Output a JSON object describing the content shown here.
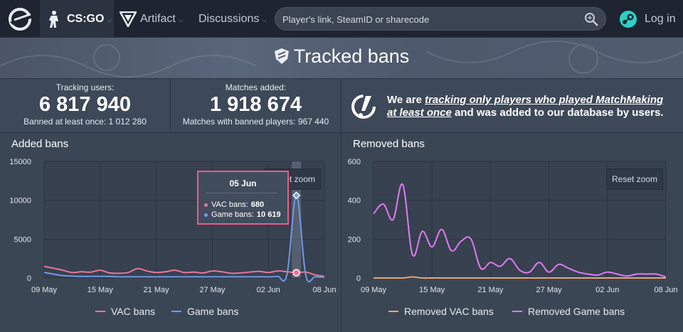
{
  "nav": {
    "game_label": "CS:GO",
    "artifact_label": "Artifact",
    "discussions_label": "Discussions",
    "search_placeholder": "Player's link, SteamID or sharecode",
    "login_label": "Log in"
  },
  "hero": {
    "title": "Tracked bans"
  },
  "stats": {
    "tracking": {
      "title": "Tracking users:",
      "value": "6 817 940",
      "sub": "Banned at least once: 1 012 280"
    },
    "matches": {
      "title": "Matches added:",
      "value": "1 918 674",
      "sub": "Matches with banned players: 967 440"
    }
  },
  "notice": {
    "prefix": "We are ",
    "emphasis": "tracking only players who played MatchMaking at least once",
    "suffix": " and was added to our database by users."
  },
  "colors": {
    "vac": "#e8769b",
    "game": "#6f9ae8",
    "removed_vac": "#e8a66f",
    "removed_game": "#e07af0"
  },
  "chart_data": [
    {
      "type": "line",
      "title": "Added bans",
      "x": [
        "09 May",
        "10 May",
        "11 May",
        "12 May",
        "13 May",
        "14 May",
        "15 May",
        "16 May",
        "17 May",
        "18 May",
        "19 May",
        "20 May",
        "21 May",
        "22 May",
        "23 May",
        "24 May",
        "25 May",
        "26 May",
        "27 May",
        "28 May",
        "29 May",
        "30 May",
        "31 May",
        "01 Jun",
        "02 Jun",
        "03 Jun",
        "04 Jun",
        "05 Jun",
        "06 Jun",
        "07 Jun",
        "08 Jun"
      ],
      "x_ticks": [
        "09 May",
        "15 May",
        "21 May",
        "27 May",
        "02 Jun",
        "08 Jun"
      ],
      "y_ticks": [
        0,
        5000,
        10000,
        15000
      ],
      "ylim": [
        0,
        15000
      ],
      "series": [
        {
          "name": "VAC bans",
          "values": [
            1500,
            1250,
            1000,
            700,
            800,
            750,
            1000,
            650,
            600,
            700,
            1200,
            900,
            700,
            800,
            1000,
            700,
            750,
            650,
            900,
            800,
            600,
            650,
            750,
            850,
            700,
            900,
            800,
            680,
            750,
            400,
            200
          ]
        },
        {
          "name": "Game bans",
          "values": [
            700,
            500,
            300,
            250,
            200,
            200,
            200,
            200,
            150,
            150,
            150,
            150,
            150,
            150,
            150,
            150,
            150,
            150,
            150,
            150,
            150,
            150,
            150,
            150,
            150,
            200,
            500,
            10619,
            400,
            150,
            100
          ]
        }
      ],
      "tooltip": {
        "date": "05 Jun",
        "vac_label": "VAC bans:",
        "vac_value": "680",
        "game_label": "Game bans:",
        "game_value": "10 619"
      },
      "reset_zoom_label": "Reset zoom"
    },
    {
      "type": "line",
      "title": "Removed bans",
      "x": [
        "09 May",
        "10 May",
        "11 May",
        "12 May",
        "13 May",
        "14 May",
        "15 May",
        "16 May",
        "17 May",
        "18 May",
        "19 May",
        "20 May",
        "21 May",
        "22 May",
        "23 May",
        "24 May",
        "25 May",
        "26 May",
        "27 May",
        "28 May",
        "29 May",
        "30 May",
        "31 May",
        "01 Jun",
        "02 Jun",
        "03 Jun",
        "04 Jun",
        "05 Jun",
        "06 Jun",
        "07 Jun",
        "08 Jun"
      ],
      "x_ticks": [
        "09 May",
        "15 May",
        "21 May",
        "27 May",
        "02 Jun",
        "08 Jun"
      ],
      "y_ticks": [
        0,
        200,
        400,
        600
      ],
      "ylim": [
        0,
        600
      ],
      "series": [
        {
          "name": "Removed VAC bans",
          "values": [
            0,
            0,
            0,
            0,
            5,
            0,
            0,
            0,
            0,
            0,
            0,
            0,
            0,
            0,
            0,
            0,
            0,
            0,
            0,
            0,
            0,
            0,
            0,
            0,
            0,
            0,
            0,
            0,
            0,
            0,
            0
          ]
        },
        {
          "name": "Removed Game bans",
          "values": [
            330,
            380,
            300,
            480,
            120,
            240,
            160,
            250,
            140,
            190,
            200,
            50,
            80,
            60,
            100,
            40,
            30,
            80,
            30,
            70,
            50,
            30,
            20,
            15,
            30,
            20,
            10,
            20,
            20,
            20,
            5
          ]
        }
      ],
      "reset_zoom_label": "Reset zoom"
    }
  ]
}
